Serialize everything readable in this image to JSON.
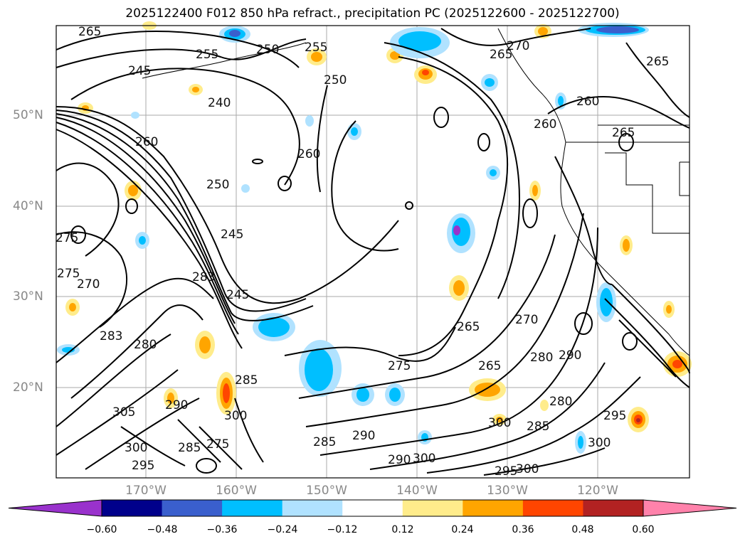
{
  "title": "2025122400 F012 850 hPa refract., precipitation PC (2025122600 - 2025122700)",
  "axes": {
    "lat_labels": [
      "50°N",
      "40°N",
      "30°N",
      "20°N"
    ],
    "lon_labels": [
      "170°W",
      "160°W",
      "150°W",
      "140°W",
      "130°W",
      "120°W"
    ]
  },
  "colorbar": {
    "ticks": [
      "−0.60",
      "−0.48",
      "−0.36",
      "−0.24",
      "−0.12",
      "0.12",
      "0.24",
      "0.36",
      "0.48",
      "0.60"
    ],
    "colors": [
      "#9932cc",
      "#00008b",
      "#3a5fcd",
      "#00bfff",
      "#b0e2ff",
      "#ffffff",
      "#ffec8b",
      "#ffa500",
      "#ff4500",
      "#b22222",
      "#ff82ab"
    ]
  },
  "contour_labels": [
    "265",
    "255",
    "250",
    "245",
    "240",
    "255",
    "250",
    "270",
    "260",
    "250",
    "245",
    "260",
    "265",
    "260",
    "260",
    "265",
    "275",
    "275",
    "270",
    "283",
    "280",
    "245",
    "283",
    "285",
    "275",
    "265",
    "270",
    "265",
    "280",
    "290",
    "280",
    "285",
    "300",
    "295",
    "300",
    "290",
    "285",
    "290",
    "300",
    "305",
    "300",
    "300",
    "295",
    "290",
    "275",
    "300",
    "295",
    "285",
    "265"
  ]
}
